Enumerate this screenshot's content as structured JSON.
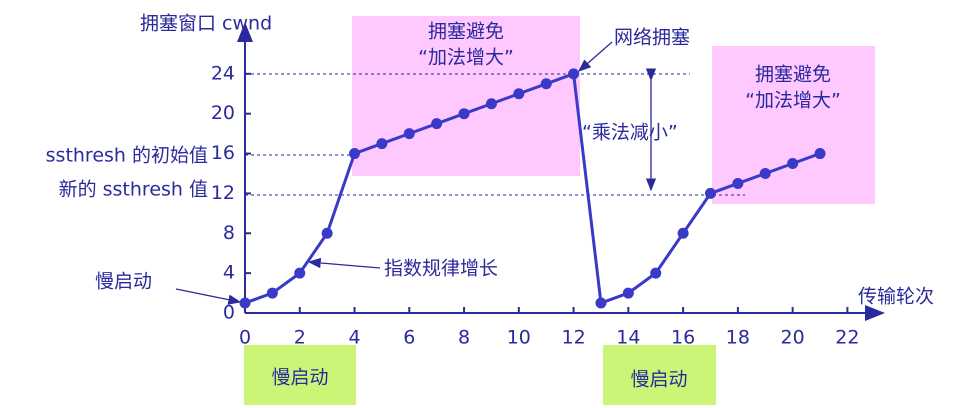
{
  "chart_data": {
    "type": "line",
    "y_label": "拥塞窗口 cwnd",
    "x_label": "传输轮次",
    "x": [
      0,
      1,
      2,
      3,
      4,
      5,
      6,
      7,
      8,
      9,
      10,
      11,
      12,
      13,
      14,
      15,
      16,
      17,
      18,
      19,
      20,
      21
    ],
    "values": [
      1,
      2,
      4,
      8,
      16,
      17,
      18,
      19,
      20,
      21,
      22,
      23,
      24,
      1,
      2,
      4,
      8,
      12,
      13,
      14,
      15,
      16
    ],
    "color": "#3a3ac8",
    "xlim": [
      0,
      23.3
    ],
    "ylim": [
      0,
      29
    ],
    "xticks": [
      0,
      2,
      4,
      6,
      8,
      10,
      12,
      14,
      16,
      18,
      20,
      22
    ],
    "yticks": [
      0,
      4,
      8,
      12,
      16,
      20,
      24
    ],
    "annotations": {
      "congestion_avoidance_1": [
        "拥塞避免",
        "“加法增大”"
      ],
      "congestion_avoidance_2": [
        "拥塞避免",
        "“加法增大”"
      ],
      "network_congestion": "网络拥塞",
      "multiplicative_decrease": "“乘法减小”",
      "initial_ssthresh": "ssthresh 的初始值",
      "new_ssthresh": "新的 ssthresh 值",
      "slow_start": "慢启动",
      "exponential_growth": "指数规律增长",
      "slow_start_box_1": "慢启动",
      "slow_start_box_2": "慢启动"
    }
  }
}
